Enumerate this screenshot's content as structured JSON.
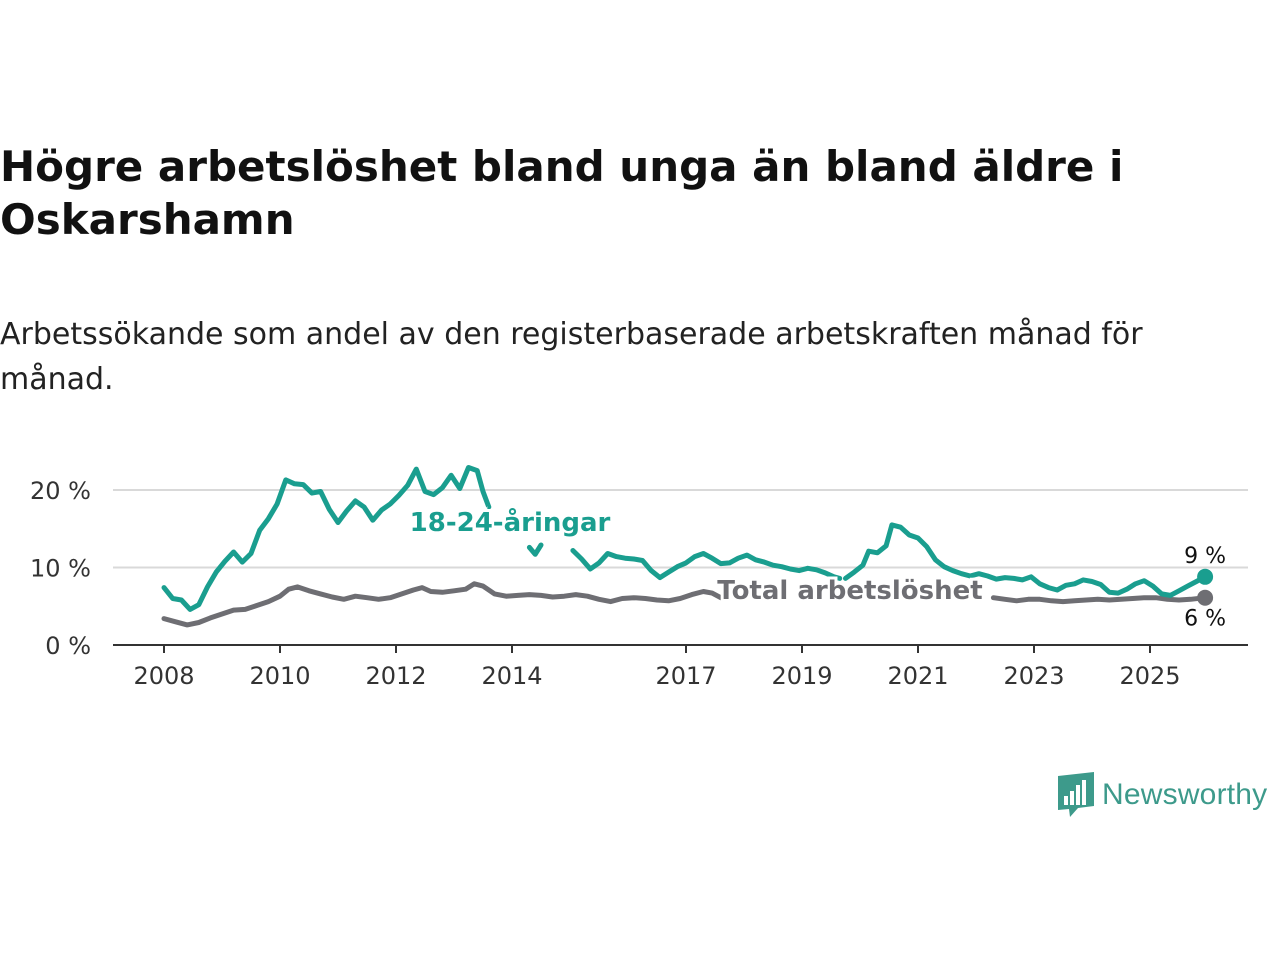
{
  "chart_data": {
    "type": "line",
    "title": "Högre arbetslöshet bland unga än bland äldre i Oskarshamn",
    "subtitle": "Arbetssökande som andel av den registerbaserade arbetskraften månad för månad.",
    "xlabel": "",
    "ylabel": "",
    "xlim": [
      2008,
      2026.1
    ],
    "ylim": [
      0,
      23
    ],
    "y_ticks": [
      {
        "value": 0,
        "label": "0 %"
      },
      {
        "value": 10,
        "label": "10 %"
      },
      {
        "value": 20,
        "label": "20 %"
      }
    ],
    "x_ticks": [
      {
        "value": 2008,
        "label": "2008"
      },
      {
        "value": 2010,
        "label": "2010"
      },
      {
        "value": 2012,
        "label": "2012"
      },
      {
        "value": 2014,
        "label": "2014"
      },
      {
        "value": 2017,
        "label": "2017"
      },
      {
        "value": 2019,
        "label": "2019"
      },
      {
        "value": 2021,
        "label": "2021"
      },
      {
        "value": 2023,
        "label": "2023"
      },
      {
        "value": 2025,
        "label": "2025"
      }
    ],
    "grid": true,
    "series": [
      {
        "name": "18-24-åringar",
        "color": "#1a9e8f",
        "label_color": "#1a9e8f",
        "end_label": "9 %",
        "points": [
          [
            2008.0,
            7.4
          ],
          [
            2008.15,
            6.0
          ],
          [
            2008.3,
            5.8
          ],
          [
            2008.45,
            4.6
          ],
          [
            2008.6,
            5.2
          ],
          [
            2008.75,
            7.5
          ],
          [
            2008.9,
            9.4
          ],
          [
            2009.05,
            10.8
          ],
          [
            2009.2,
            12.0
          ],
          [
            2009.35,
            10.7
          ],
          [
            2009.5,
            11.8
          ],
          [
            2009.65,
            14.8
          ],
          [
            2009.8,
            16.3
          ],
          [
            2009.95,
            18.2
          ],
          [
            2010.1,
            21.3
          ],
          [
            2010.25,
            20.8
          ],
          [
            2010.4,
            20.7
          ],
          [
            2010.55,
            19.6
          ],
          [
            2010.7,
            19.8
          ],
          [
            2010.85,
            17.5
          ],
          [
            2011.0,
            15.8
          ],
          [
            2011.15,
            17.3
          ],
          [
            2011.3,
            18.6
          ],
          [
            2011.45,
            17.8
          ],
          [
            2011.6,
            16.1
          ],
          [
            2011.75,
            17.4
          ],
          [
            2011.9,
            18.2
          ],
          [
            2012.05,
            19.3
          ],
          [
            2012.2,
            20.6
          ],
          [
            2012.35,
            22.7
          ],
          [
            2012.5,
            19.8
          ],
          [
            2012.65,
            19.4
          ],
          [
            2012.8,
            20.3
          ],
          [
            2012.95,
            21.9
          ],
          [
            2013.1,
            20.2
          ],
          [
            2013.25,
            22.9
          ],
          [
            2013.4,
            22.5
          ],
          [
            2013.5,
            19.8
          ],
          [
            2013.6,
            17.8
          ],
          null,
          [
            2014.3,
            12.6
          ],
          [
            2014.4,
            11.7
          ],
          [
            2014.5,
            12.9
          ],
          null,
          [
            2015.05,
            12.2
          ],
          [
            2015.2,
            11.1
          ],
          [
            2015.35,
            9.8
          ],
          [
            2015.5,
            10.6
          ],
          [
            2015.65,
            11.8
          ],
          [
            2015.8,
            11.4
          ],
          [
            2015.95,
            11.2
          ],
          [
            2016.1,
            11.1
          ],
          [
            2016.25,
            10.9
          ],
          [
            2016.4,
            9.6
          ],
          [
            2016.55,
            8.7
          ],
          [
            2016.7,
            9.4
          ],
          [
            2016.85,
            10.1
          ],
          [
            2017.0,
            10.6
          ],
          [
            2017.15,
            11.4
          ],
          [
            2017.3,
            11.8
          ],
          [
            2017.45,
            11.2
          ],
          [
            2017.6,
            10.5
          ],
          [
            2017.75,
            10.6
          ],
          [
            2017.9,
            11.2
          ],
          [
            2018.05,
            11.6
          ],
          [
            2018.2,
            11.0
          ],
          [
            2018.35,
            10.7
          ],
          [
            2018.5,
            10.3
          ],
          [
            2018.65,
            10.1
          ],
          [
            2018.8,
            9.8
          ],
          [
            2018.95,
            9.6
          ],
          [
            2019.1,
            9.9
          ],
          [
            2019.25,
            9.7
          ],
          [
            2019.4,
            9.3
          ],
          [
            2019.55,
            8.8
          ],
          [
            2019.65,
            8.6
          ],
          null,
          [
            2019.75,
            8.6
          ],
          [
            2019.9,
            9.4
          ],
          [
            2020.05,
            10.3
          ],
          [
            2020.15,
            12.1
          ],
          [
            2020.3,
            11.9
          ],
          [
            2020.45,
            12.8
          ],
          [
            2020.55,
            15.5
          ],
          [
            2020.7,
            15.2
          ],
          [
            2020.85,
            14.2
          ],
          [
            2021.0,
            13.8
          ],
          [
            2021.15,
            12.7
          ],
          [
            2021.3,
            11.0
          ],
          [
            2021.45,
            10.1
          ],
          [
            2021.6,
            9.6
          ],
          [
            2021.75,
            9.2
          ],
          [
            2021.9,
            8.9
          ],
          [
            2022.05,
            9.2
          ],
          [
            2022.2,
            8.9
          ],
          [
            2022.35,
            8.5
          ],
          [
            2022.5,
            8.7
          ],
          [
            2022.65,
            8.6
          ],
          [
            2022.8,
            8.4
          ],
          [
            2022.95,
            8.8
          ],
          [
            2023.1,
            7.9
          ],
          [
            2023.25,
            7.4
          ],
          [
            2023.4,
            7.1
          ],
          [
            2023.55,
            7.7
          ],
          [
            2023.7,
            7.9
          ],
          [
            2023.85,
            8.4
          ],
          [
            2024.0,
            8.2
          ],
          [
            2024.15,
            7.8
          ],
          [
            2024.3,
            6.8
          ],
          [
            2024.45,
            6.7
          ],
          [
            2024.6,
            7.2
          ],
          [
            2024.75,
            7.9
          ],
          [
            2024.9,
            8.3
          ],
          [
            2025.05,
            7.6
          ],
          [
            2025.2,
            6.6
          ],
          [
            2025.35,
            6.4
          ],
          [
            2025.5,
            7.0
          ],
          [
            2025.65,
            7.6
          ],
          [
            2025.8,
            8.2
          ],
          [
            2025.95,
            8.8
          ]
        ]
      },
      {
        "name": "Total arbetslöshet",
        "color": "#6e6e73",
        "label_color": "#6e6e73",
        "end_label": "6 %",
        "points": [
          [
            2008.0,
            3.4
          ],
          [
            2008.2,
            3.0
          ],
          [
            2008.4,
            2.6
          ],
          [
            2008.6,
            2.9
          ],
          [
            2008.8,
            3.5
          ],
          [
            2009.0,
            4.0
          ],
          [
            2009.2,
            4.5
          ],
          [
            2009.4,
            4.6
          ],
          [
            2009.6,
            5.1
          ],
          [
            2009.8,
            5.6
          ],
          [
            2010.0,
            6.3
          ],
          [
            2010.15,
            7.2
          ],
          [
            2010.3,
            7.5
          ],
          [
            2010.5,
            7.0
          ],
          [
            2010.7,
            6.6
          ],
          [
            2010.9,
            6.2
          ],
          [
            2011.1,
            5.9
          ],
          [
            2011.3,
            6.3
          ],
          [
            2011.5,
            6.1
          ],
          [
            2011.7,
            5.9
          ],
          [
            2011.9,
            6.1
          ],
          [
            2012.1,
            6.6
          ],
          [
            2012.3,
            7.1
          ],
          [
            2012.45,
            7.4
          ],
          [
            2012.6,
            6.9
          ],
          [
            2012.8,
            6.8
          ],
          [
            2013.0,
            7.0
          ],
          [
            2013.2,
            7.2
          ],
          [
            2013.35,
            7.9
          ],
          [
            2013.5,
            7.6
          ],
          [
            2013.7,
            6.6
          ],
          [
            2013.9,
            6.3
          ],
          [
            2014.1,
            6.4
          ],
          [
            2014.3,
            6.5
          ],
          [
            2014.5,
            6.4
          ],
          [
            2014.7,
            6.2
          ],
          [
            2014.9,
            6.3
          ],
          [
            2015.1,
            6.5
          ],
          [
            2015.3,
            6.3
          ],
          [
            2015.5,
            5.9
          ],
          [
            2015.7,
            5.6
          ],
          [
            2015.9,
            6.0
          ],
          [
            2016.1,
            6.1
          ],
          [
            2016.3,
            6.0
          ],
          [
            2016.5,
            5.8
          ],
          [
            2016.7,
            5.7
          ],
          [
            2016.9,
            6.0
          ],
          [
            2017.1,
            6.5
          ],
          [
            2017.3,
            6.9
          ],
          [
            2017.45,
            6.7
          ],
          [
            2017.6,
            6.1
          ],
          [
            2017.7,
            5.9
          ],
          null,
          [
            2022.3,
            6.1
          ],
          [
            2022.5,
            5.9
          ],
          [
            2022.7,
            5.7
          ],
          [
            2022.9,
            5.9
          ],
          [
            2023.1,
            5.9
          ],
          [
            2023.3,
            5.7
          ],
          [
            2023.5,
            5.6
          ],
          [
            2023.7,
            5.7
          ],
          [
            2023.9,
            5.8
          ],
          [
            2024.1,
            5.9
          ],
          [
            2024.3,
            5.8
          ],
          [
            2024.5,
            5.9
          ],
          [
            2024.7,
            6.0
          ],
          [
            2024.9,
            6.1
          ],
          [
            2025.1,
            6.1
          ],
          [
            2025.3,
            5.9
          ],
          [
            2025.5,
            5.8
          ],
          [
            2025.7,
            5.9
          ],
          [
            2025.95,
            6.1
          ]
        ]
      }
    ]
  },
  "annotations": {
    "series_label_young": "18-24-åringar",
    "series_label_total": "Total arbetslöshet"
  },
  "brand": {
    "logo_text": "Newsworthy",
    "accent_color": "#3d9a8b"
  }
}
